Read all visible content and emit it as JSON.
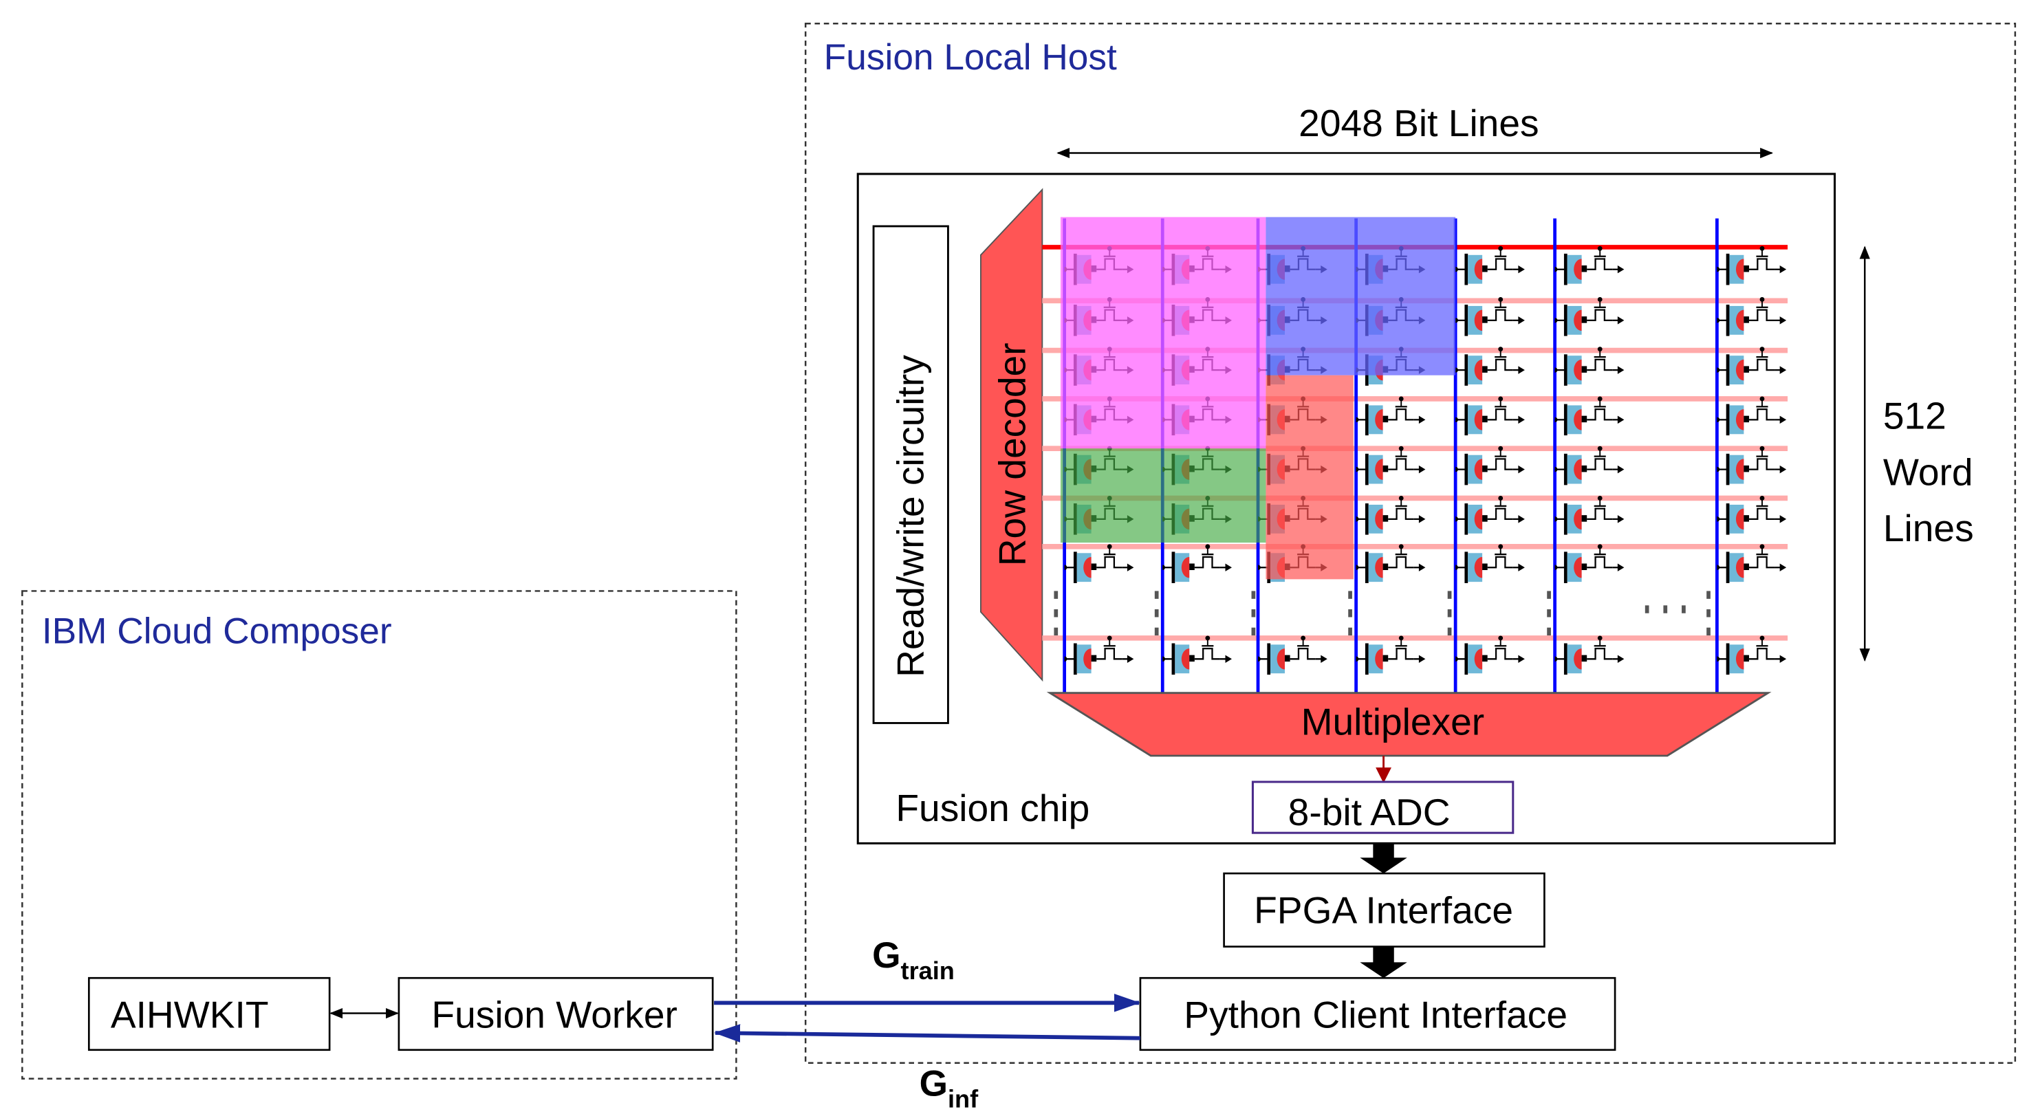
{
  "ibm_cloud_composer": {
    "title": "IBM Cloud Composer",
    "aihwkit_label": "AIHWKIT",
    "fusion_worker_label": "Fusion Worker"
  },
  "fusion_local_host": {
    "title": "Fusion Local Host",
    "bit_lines_label": "2048 Bit Lines",
    "word_lines_label": [
      "512",
      "Word",
      "Lines"
    ],
    "read_write_label": "Read/write circuitry",
    "row_decoder_label": "Row decoder",
    "multiplexer_label": "Multiplexer",
    "adc_label": "8-bit ADC",
    "chip_label": "Fusion chip",
    "fpga_label": "FPGA Interface",
    "python_client_label": "Python Client Interface"
  },
  "links": {
    "g_train": {
      "base": "G",
      "sub": "train"
    },
    "g_inf": {
      "base": "G",
      "sub": "inf"
    }
  },
  "colors": {
    "title": "#1f2a9a",
    "bit_line": "#0000ff",
    "word_line": "#ffaaaa",
    "active_word_line": "#ff0000",
    "decoder": "#ff5555",
    "link_arrow": "#1a2a9a",
    "tile_magenta": "#ff66ff",
    "tile_blue": "#6666ff",
    "tile_red": "#ff5555",
    "tile_green": "#44aa44"
  }
}
